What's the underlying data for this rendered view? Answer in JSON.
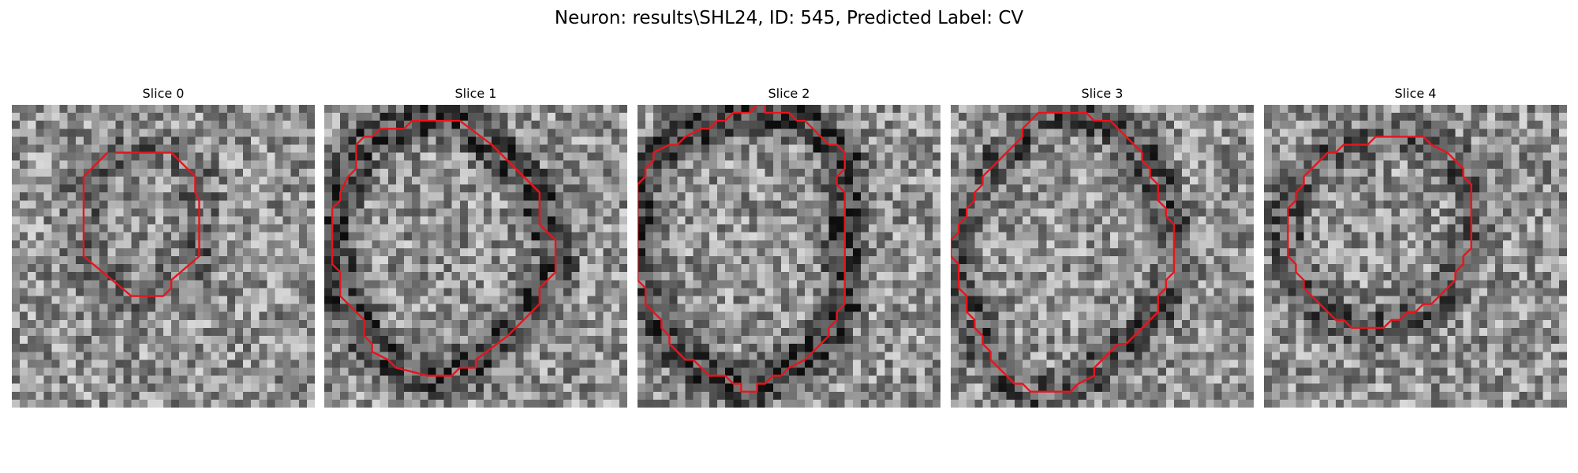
{
  "figure": {
    "title": "Neuron: results\\SHL24, ID: 545, Predicted Label: CV"
  },
  "slices": [
    {
      "title": "Slice 0",
      "seed": 11,
      "dark_ring": 0.55,
      "contour": [
        [
          13,
          6
        ],
        [
          20,
          6
        ],
        [
          23,
          9
        ],
        [
          23,
          11
        ],
        [
          23.5,
          12
        ],
        [
          23.5,
          19
        ],
        [
          20,
          22
        ],
        [
          20,
          23
        ],
        [
          19,
          24
        ],
        [
          15,
          24
        ],
        [
          9,
          19
        ],
        [
          9,
          9
        ],
        [
          12,
          6
        ]
      ]
    },
    {
      "title": "Slice 1",
      "seed": 23,
      "dark_ring": 1.0,
      "contour": [
        [
          10,
          3
        ],
        [
          11,
          2
        ],
        [
          17,
          2
        ],
        [
          21,
          5
        ],
        [
          24,
          8
        ],
        [
          27,
          11
        ],
        [
          27,
          15
        ],
        [
          29,
          17
        ],
        [
          29,
          21
        ],
        [
          27,
          23
        ],
        [
          27,
          25
        ],
        [
          23,
          29
        ],
        [
          19,
          32
        ],
        [
          19,
          33
        ],
        [
          17,
          33
        ],
        [
          16,
          34
        ],
        [
          13,
          34
        ],
        [
          9,
          33
        ],
        [
          8,
          32
        ],
        [
          6,
          31
        ],
        [
          6,
          30
        ],
        [
          5,
          29
        ],
        [
          5,
          27
        ],
        [
          2,
          24
        ],
        [
          2,
          22
        ],
        [
          2,
          21
        ],
        [
          1,
          20
        ],
        [
          1,
          19
        ],
        [
          1,
          13
        ],
        [
          2,
          12
        ],
        [
          2,
          11
        ],
        [
          3,
          9
        ],
        [
          4,
          8
        ],
        [
          4,
          5
        ],
        [
          5,
          4
        ],
        [
          6,
          4
        ],
        [
          7,
          3
        ],
        [
          10,
          3
        ]
      ]
    },
    {
      "title": "Slice 2",
      "seed": 37,
      "dark_ring": 1.1,
      "contour": [
        [
          11,
          2
        ],
        [
          12,
          1
        ],
        [
          14,
          1
        ],
        [
          15,
          0
        ],
        [
          16,
          0
        ],
        [
          16,
          1
        ],
        [
          19,
          1
        ],
        [
          20,
          2
        ],
        [
          21,
          2
        ],
        [
          24,
          5
        ],
        [
          25,
          5
        ],
        [
          26,
          6
        ],
        [
          26,
          8
        ],
        [
          25,
          9
        ],
        [
          25,
          10
        ],
        [
          26,
          11
        ],
        [
          26,
          25
        ],
        [
          25,
          26
        ],
        [
          25,
          27
        ],
        [
          24,
          28
        ],
        [
          24,
          29
        ],
        [
          22,
          31
        ],
        [
          21,
          32
        ],
        [
          19,
          33
        ],
        [
          18,
          34
        ],
        [
          17,
          34
        ],
        [
          16,
          35
        ],
        [
          15,
          35
        ],
        [
          15,
          36
        ],
        [
          13,
          36
        ],
        [
          13,
          35
        ],
        [
          12,
          35
        ],
        [
          11,
          34
        ],
        [
          9,
          34
        ],
        [
          8,
          33
        ],
        [
          7,
          32
        ],
        [
          6,
          32
        ],
        [
          5,
          31
        ],
        [
          4,
          30
        ],
        [
          4,
          29
        ],
        [
          3,
          28
        ],
        [
          3,
          27
        ],
        [
          2,
          26
        ],
        [
          1,
          25
        ],
        [
          1,
          23
        ],
        [
          0,
          22
        ],
        [
          0,
          10
        ],
        [
          1,
          9
        ],
        [
          1,
          8
        ],
        [
          2,
          7
        ],
        [
          2,
          6
        ],
        [
          4,
          5
        ],
        [
          5,
          5
        ],
        [
          6,
          4
        ],
        [
          8,
          3
        ],
        [
          9,
          3
        ],
        [
          10,
          2
        ],
        [
          11,
          2
        ]
      ]
    },
    {
      "title": "Slice 3",
      "seed": 51,
      "dark_ring": 0.8,
      "contour": [
        [
          10,
          2
        ],
        [
          11,
          1
        ],
        [
          17,
          1
        ],
        [
          18,
          2
        ],
        [
          20,
          2
        ],
        [
          21,
          3
        ],
        [
          22,
          4
        ],
        [
          23,
          5
        ],
        [
          24,
          6
        ],
        [
          24,
          7
        ],
        [
          25,
          8
        ],
        [
          25,
          9
        ],
        [
          26,
          10
        ],
        [
          26,
          12
        ],
        [
          27,
          13
        ],
        [
          27,
          14
        ],
        [
          28,
          15
        ],
        [
          28,
          21
        ],
        [
          27,
          22
        ],
        [
          27,
          23
        ],
        [
          26,
          24
        ],
        [
          26,
          26
        ],
        [
          25,
          27
        ],
        [
          24,
          28
        ],
        [
          23,
          29
        ],
        [
          22,
          30
        ],
        [
          21,
          30
        ],
        [
          20,
          31
        ],
        [
          19,
          32
        ],
        [
          18,
          33
        ],
        [
          18,
          34
        ],
        [
          16,
          35
        ],
        [
          15,
          36
        ],
        [
          10,
          36
        ],
        [
          9,
          35
        ],
        [
          8,
          35
        ],
        [
          7,
          34
        ],
        [
          6,
          33
        ],
        [
          5,
          32
        ],
        [
          5,
          31
        ],
        [
          4,
          30
        ],
        [
          4,
          29
        ],
        [
          3,
          28
        ],
        [
          3,
          27
        ],
        [
          2,
          26
        ],
        [
          2,
          24
        ],
        [
          1,
          23
        ],
        [
          1,
          20
        ],
        [
          0,
          19
        ],
        [
          0,
          17
        ],
        [
          1,
          16
        ],
        [
          1,
          15
        ],
        [
          2,
          14
        ],
        [
          2,
          13
        ],
        [
          3,
          12
        ],
        [
          3,
          11
        ],
        [
          4,
          10
        ],
        [
          4,
          9
        ],
        [
          5,
          8
        ],
        [
          6,
          7
        ],
        [
          7,
          6
        ],
        [
          8,
          5
        ],
        [
          9,
          4
        ],
        [
          9,
          3
        ],
        [
          10,
          2
        ]
      ]
    },
    {
      "title": "Slice 4",
      "seed": 67,
      "dark_ring": 0.7,
      "contour": [
        [
          12,
          5
        ],
        [
          13,
          5
        ],
        [
          14,
          4
        ],
        [
          20,
          4
        ],
        [
          21,
          5
        ],
        [
          23,
          6
        ],
        [
          24,
          7
        ],
        [
          25,
          8
        ],
        [
          25,
          9
        ],
        [
          26,
          10
        ],
        [
          26,
          18
        ],
        [
          25,
          19
        ],
        [
          25,
          20
        ],
        [
          24,
          21
        ],
        [
          24,
          22
        ],
        [
          23,
          23
        ],
        [
          22,
          24
        ],
        [
          21,
          25
        ],
        [
          20,
          25
        ],
        [
          19,
          26
        ],
        [
          18,
          26
        ],
        [
          17,
          27
        ],
        [
          16,
          27
        ],
        [
          15,
          28
        ],
        [
          11,
          28
        ],
        [
          10,
          27
        ],
        [
          9,
          27
        ],
        [
          8,
          26
        ],
        [
          7,
          25
        ],
        [
          6,
          24
        ],
        [
          5,
          23
        ],
        [
          5,
          22
        ],
        [
          4,
          21
        ],
        [
          4,
          20
        ],
        [
          3,
          19
        ],
        [
          3,
          13
        ],
        [
          4,
          12
        ],
        [
          4,
          11
        ],
        [
          5,
          10
        ],
        [
          5,
          9
        ],
        [
          6,
          8
        ],
        [
          7,
          7
        ],
        [
          8,
          6
        ],
        [
          9,
          6
        ],
        [
          10,
          5
        ],
        [
          12,
          5
        ]
      ]
    }
  ]
}
